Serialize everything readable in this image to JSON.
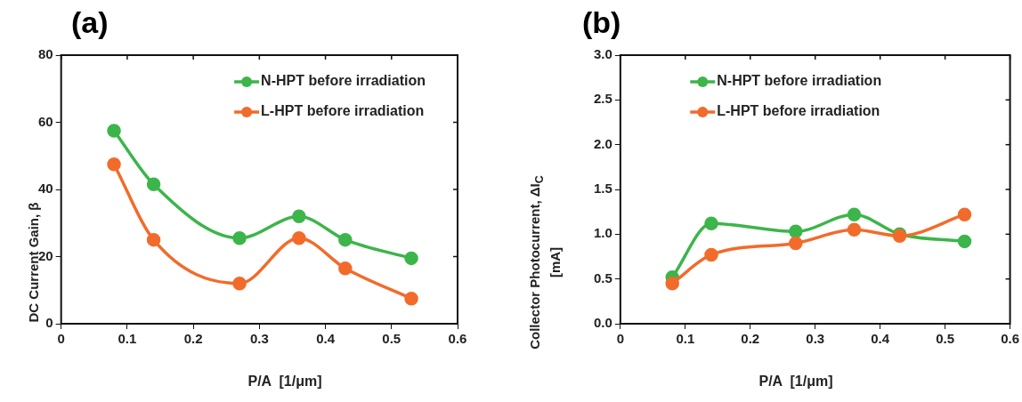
{
  "chart_data": [
    {
      "type": "line",
      "title": "(a)",
      "xlabel": "P/A  [1/μm]",
      "ylabel": "DC Current Gain, β",
      "x": [
        0.08,
        0.14,
        0.27,
        0.36,
        0.43,
        0.53
      ],
      "series": [
        {
          "name": "N-HPT before irradiation",
          "color": "#3cb54a",
          "values": [
            57.5,
            41.5,
            25.5,
            32,
            25,
            19.5
          ]
        },
        {
          "name": "L-HPT before irradiation",
          "color": "#f26b2a",
          "values": [
            47.5,
            25,
            12,
            25.5,
            16.5,
            7.5
          ]
        }
      ],
      "xlim": [
        0,
        0.6
      ],
      "xticks": [
        0,
        0.1,
        0.2,
        0.3,
        0.4,
        0.5,
        0.6
      ],
      "ylim": [
        0,
        80
      ],
      "yticks": [
        0,
        20,
        40,
        60,
        80
      ],
      "grid": false,
      "legend": "top right",
      "marker": "circle",
      "line_style": "solid"
    },
    {
      "type": "line",
      "title": "(b)",
      "xlabel": "P/A  [1/μm]",
      "ylabel": "Collector Photocurrent, ΔI$_{C}$ [mA]",
      "x": [
        0.08,
        0.14,
        0.27,
        0.36,
        0.43,
        0.53
      ],
      "series": [
        {
          "name": "N-HPT before irradiation",
          "color": "#3cb54a",
          "values": [
            0.52,
            1.12,
            1.03,
            1.22,
            1.0,
            0.92
          ]
        },
        {
          "name": "L-HPT before irradiation",
          "color": "#f26b2a",
          "values": [
            0.45,
            0.77,
            0.9,
            1.05,
            0.98,
            1.22
          ]
        }
      ],
      "xlim": [
        0,
        0.6
      ],
      "xticks": [
        0,
        0.1,
        0.2,
        0.3,
        0.4,
        0.5,
        0.6
      ],
      "ylim": [
        0,
        3
      ],
      "yticks": [
        {
          "value": 0,
          "label": "0.0"
        },
        {
          "value": 0.5,
          "label": "0.5"
        },
        {
          "value": 1,
          "label": "1.0"
        },
        {
          "value": 1.5,
          "label": "1.5"
        },
        {
          "value": 2,
          "label": "2.0"
        },
        {
          "value": 2.5,
          "label": "2.5"
        },
        {
          "value": 3,
          "label": "3.0"
        }
      ],
      "grid": false,
      "legend": "top",
      "marker": "circle",
      "line_style": "solid"
    }
  ]
}
